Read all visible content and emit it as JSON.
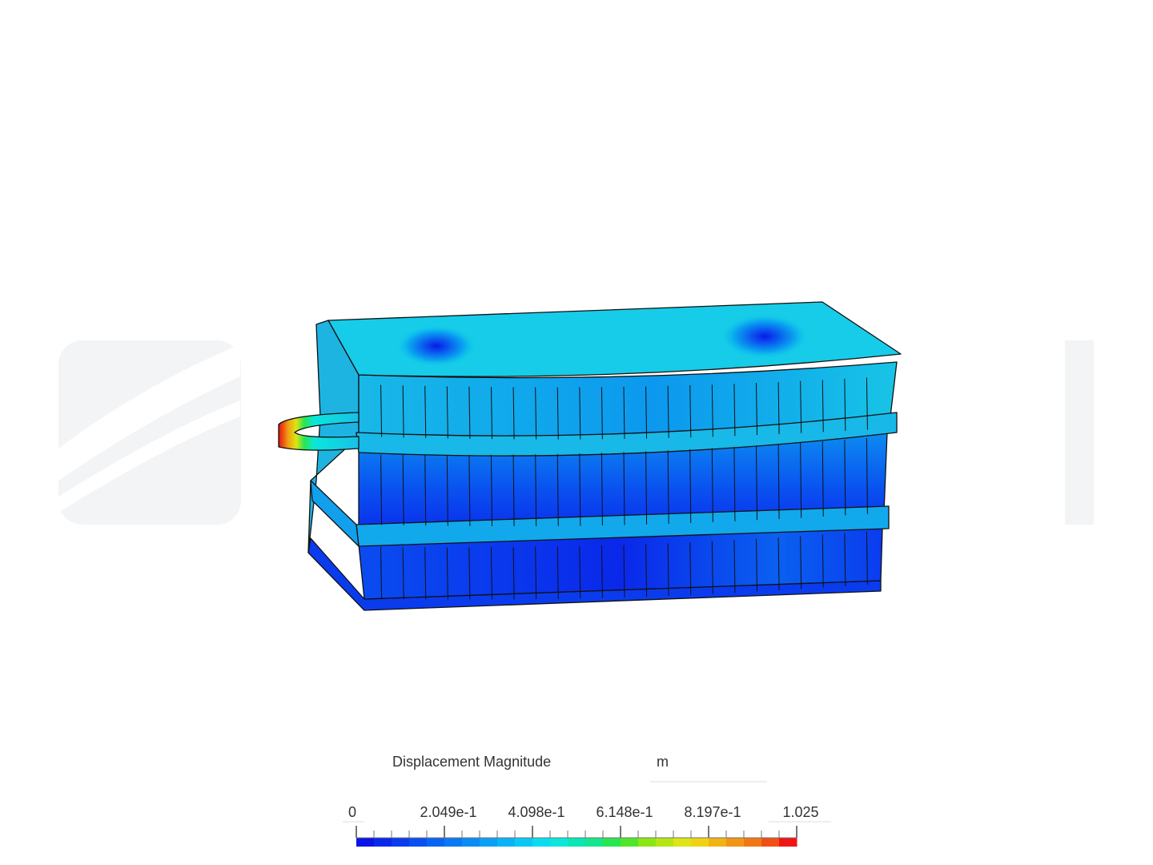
{
  "legend": {
    "title": "Displacement Magnitude",
    "unit": "m",
    "ticks": [
      "0",
      "2.049e-1",
      "4.098e-1",
      "6.148e-1",
      "8.197e-1",
      "1.025"
    ],
    "colors": [
      "#0a14e6",
      "#0a28ea",
      "#0a3cee",
      "#0a50f0",
      "#0a64f2",
      "#0a78f4",
      "#0a8cf4",
      "#0aa0f4",
      "#0ab4f4",
      "#0ac8f4",
      "#0adcf0",
      "#0ae6dc",
      "#0ae6b4",
      "#14e68c",
      "#28e650",
      "#50e628",
      "#8ce614",
      "#b4e614",
      "#dce614",
      "#f0d214",
      "#f0b414",
      "#f09614",
      "#f07814",
      "#f05014",
      "#f01414"
    ]
  }
}
